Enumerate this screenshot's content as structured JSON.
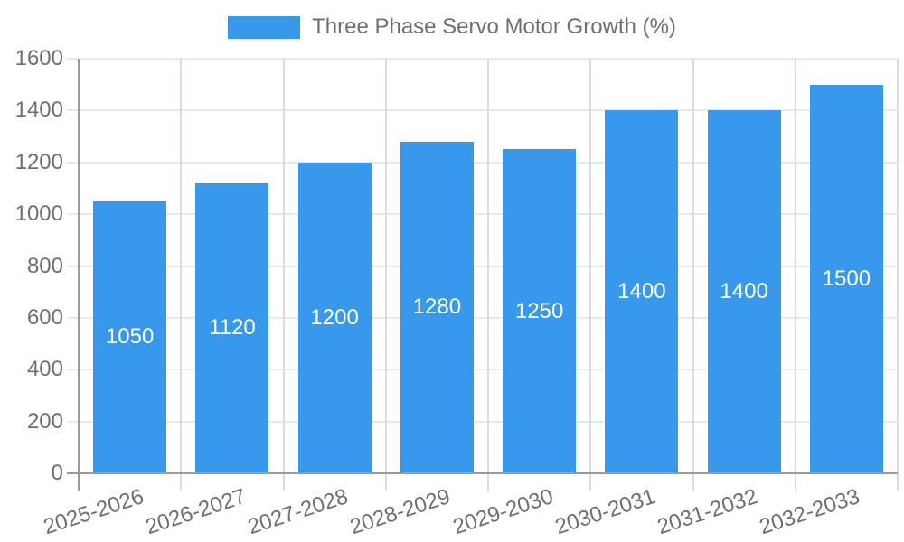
{
  "chart_data": {
    "type": "bar",
    "legend_label": "Three Phase Servo Motor Growth (%)",
    "legend_position": "top",
    "categories": [
      "2025-2026",
      "2026-2027",
      "2027-2028",
      "2028-2029",
      "2029-2030",
      "2030-2031",
      "2031-2032",
      "2032-2033"
    ],
    "values": [
      1050,
      1120,
      1200,
      1280,
      1250,
      1400,
      1400,
      1500
    ],
    "bar_labels": [
      "1050",
      "1120",
      "1200",
      "1280",
      "1250",
      "1400",
      "1400",
      "1500"
    ],
    "yticks": [
      0,
      200,
      400,
      600,
      800,
      1000,
      1200,
      1400,
      1600
    ],
    "ylim": [
      0,
      1600
    ],
    "xlabel": "",
    "ylabel": "",
    "grid": true,
    "colors": {
      "bar": "#3899EC",
      "grid": "#e9e9e9",
      "boundary_tick": "#dcdcdc",
      "axis": "#9a9a9a",
      "text": "#6f6f6f",
      "bar_label": "#ffffff",
      "background": "#ffffff"
    }
  }
}
